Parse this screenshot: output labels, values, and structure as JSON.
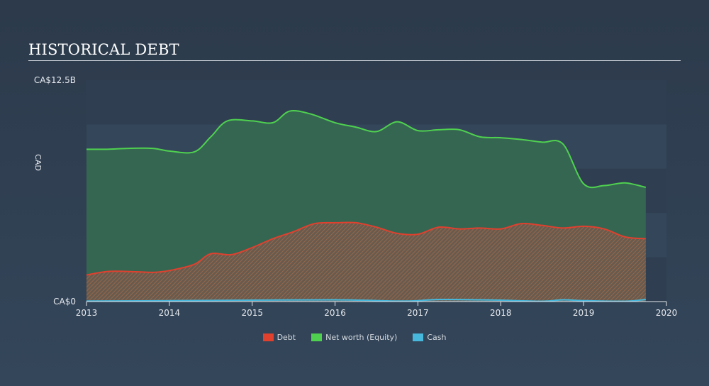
{
  "title": "HISTORICAL DEBT",
  "chart_data": {
    "type": "area",
    "title": "HISTORICAL DEBT",
    "ylabel": "CAD",
    "ylim": [
      0,
      12.5
    ],
    "y_tick_labels": [
      "CA$0",
      "CA$12.5B"
    ],
    "x_ticks": [
      2013,
      2014,
      2015,
      2016,
      2017,
      2018,
      2019,
      2020
    ],
    "x_range": [
      2013,
      2020
    ],
    "colors": {
      "debt": "#e0402e",
      "equity": "#4fd14f",
      "cash": "#47b8dc"
    },
    "series": [
      {
        "name": "Net worth (Equity)",
        "key": "equity",
        "points": [
          [
            2013.0,
            8.6
          ],
          [
            2013.25,
            8.6
          ],
          [
            2013.5,
            8.65
          ],
          [
            2013.8,
            8.65
          ],
          [
            2014.0,
            8.5
          ],
          [
            2014.3,
            8.45
          ],
          [
            2014.5,
            9.3
          ],
          [
            2014.7,
            10.2
          ],
          [
            2015.0,
            10.2
          ],
          [
            2015.25,
            10.1
          ],
          [
            2015.45,
            10.75
          ],
          [
            2015.7,
            10.6
          ],
          [
            2016.0,
            10.1
          ],
          [
            2016.25,
            9.85
          ],
          [
            2016.5,
            9.6
          ],
          [
            2016.75,
            10.15
          ],
          [
            2017.0,
            9.65
          ],
          [
            2017.25,
            9.7
          ],
          [
            2017.5,
            9.7
          ],
          [
            2017.75,
            9.3
          ],
          [
            2018.0,
            9.25
          ],
          [
            2018.25,
            9.15
          ],
          [
            2018.5,
            9.0
          ],
          [
            2018.75,
            8.9
          ],
          [
            2019.0,
            6.65
          ],
          [
            2019.25,
            6.55
          ],
          [
            2019.5,
            6.7
          ],
          [
            2019.75,
            6.45
          ]
        ]
      },
      {
        "name": "Debt",
        "key": "debt",
        "points": [
          [
            2013.0,
            1.5
          ],
          [
            2013.25,
            1.7
          ],
          [
            2013.5,
            1.7
          ],
          [
            2013.8,
            1.65
          ],
          [
            2014.0,
            1.75
          ],
          [
            2014.3,
            2.1
          ],
          [
            2014.5,
            2.7
          ],
          [
            2014.75,
            2.65
          ],
          [
            2015.0,
            3.05
          ],
          [
            2015.25,
            3.55
          ],
          [
            2015.5,
            3.95
          ],
          [
            2015.75,
            4.4
          ],
          [
            2016.0,
            4.45
          ],
          [
            2016.25,
            4.45
          ],
          [
            2016.5,
            4.2
          ],
          [
            2016.75,
            3.85
          ],
          [
            2017.0,
            3.8
          ],
          [
            2017.25,
            4.2
          ],
          [
            2017.5,
            4.1
          ],
          [
            2017.75,
            4.15
          ],
          [
            2018.0,
            4.1
          ],
          [
            2018.25,
            4.4
          ],
          [
            2018.5,
            4.3
          ],
          [
            2018.75,
            4.15
          ],
          [
            2019.0,
            4.25
          ],
          [
            2019.25,
            4.1
          ],
          [
            2019.5,
            3.65
          ],
          [
            2019.75,
            3.55
          ]
        ]
      },
      {
        "name": "Cash",
        "key": "cash",
        "points": [
          [
            2013.0,
            0.03
          ],
          [
            2014.0,
            0.05
          ],
          [
            2015.0,
            0.08
          ],
          [
            2016.0,
            0.1
          ],
          [
            2016.75,
            0.03
          ],
          [
            2017.0,
            0.05
          ],
          [
            2017.25,
            0.12
          ],
          [
            2017.75,
            0.1
          ],
          [
            2018.0,
            0.08
          ],
          [
            2018.5,
            0.02
          ],
          [
            2018.75,
            0.1
          ],
          [
            2019.0,
            0.05
          ],
          [
            2019.5,
            0.02
          ],
          [
            2019.75,
            0.12
          ]
        ]
      }
    ],
    "legend": [
      {
        "label": "Debt",
        "key": "debt"
      },
      {
        "label": "Net worth (Equity)",
        "key": "equity"
      },
      {
        "label": "Cash",
        "key": "cash"
      }
    ]
  }
}
